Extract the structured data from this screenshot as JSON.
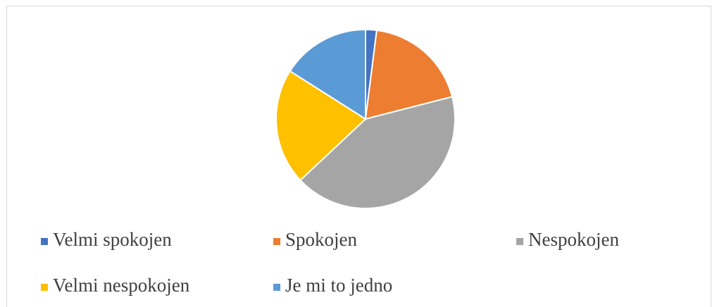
{
  "chart_data": {
    "type": "pie",
    "categories": [
      "Velmi spokojen",
      "Spokojen",
      "Nespokojen",
      "Velmi nespokojen",
      "Je mi to jedno"
    ],
    "values": [
      2,
      19,
      42,
      21,
      16
    ],
    "colors": [
      "#4472c4",
      "#ed7d31",
      "#a5a5a5",
      "#ffc000",
      "#5b9bd5"
    ],
    "legend": "bottom"
  }
}
